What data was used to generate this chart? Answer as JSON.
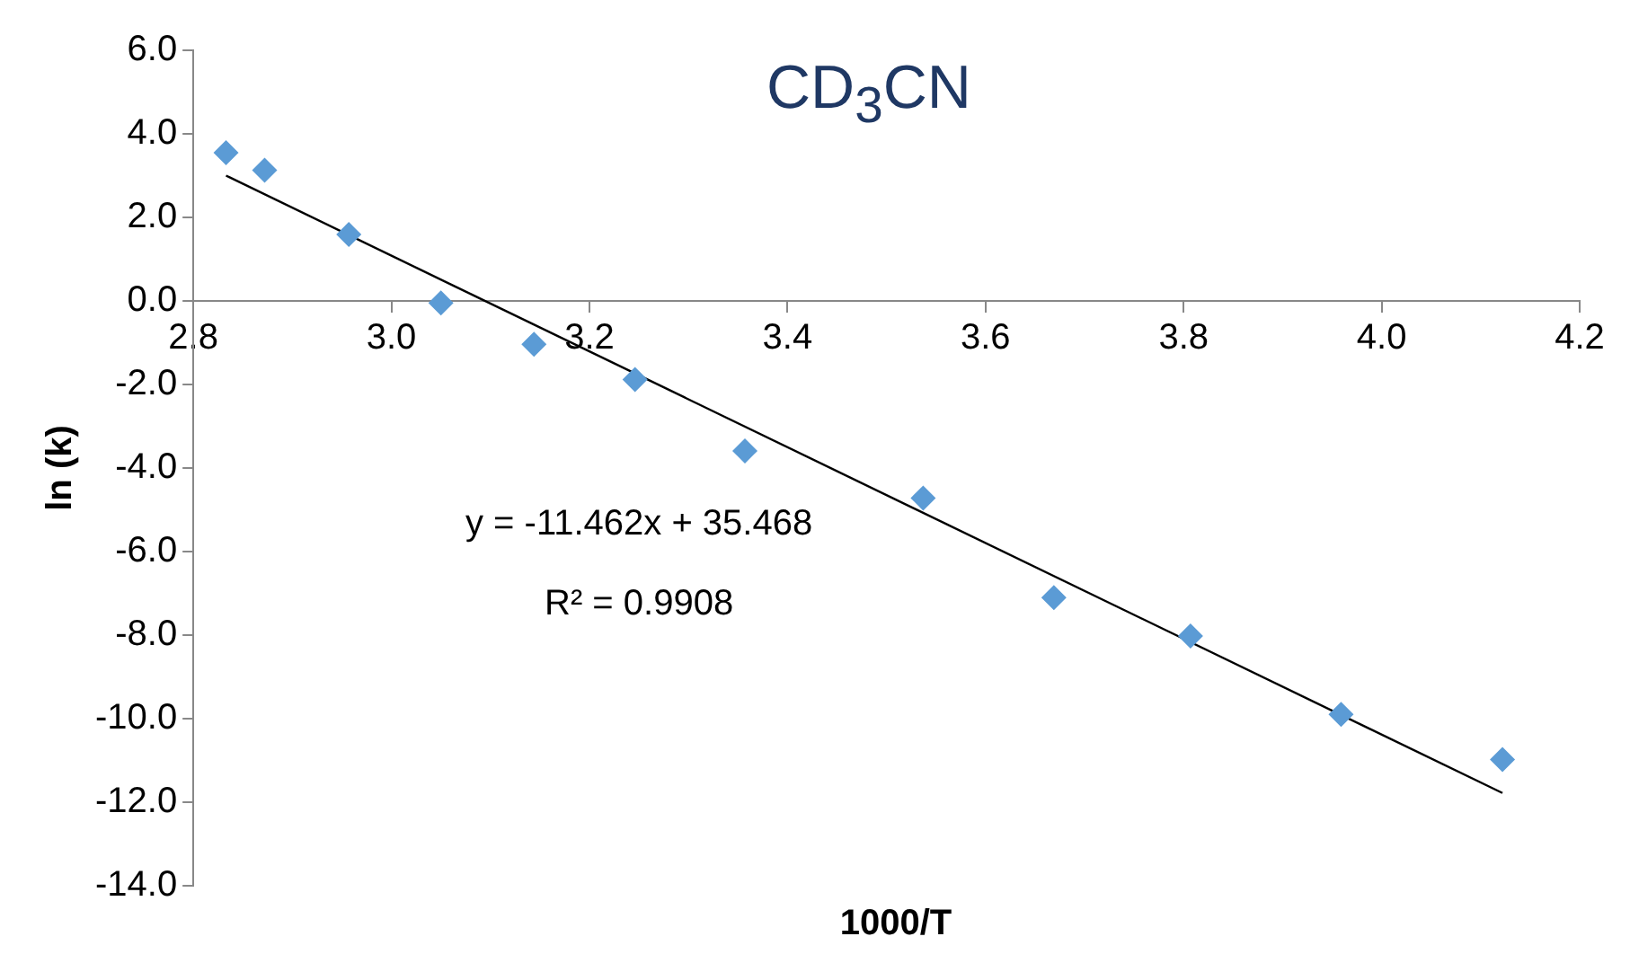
{
  "chart_data": {
    "type": "scatter",
    "title": "CD$_{3}$CN",
    "xlabel": "1000/T",
    "ylabel": "ln (k)",
    "x": [
      2.833,
      2.872,
      2.957,
      3.05,
      3.144,
      3.246,
      3.357,
      3.537,
      3.669,
      3.807,
      3.959,
      4.122
    ],
    "series": [
      {
        "type": "scatter",
        "color": "#5b9bd5",
        "marker": "diamond",
        "values": [
          3.55,
          3.13,
          1.59,
          -0.05,
          -1.04,
          -1.88,
          -3.59,
          -4.72,
          -7.1,
          -8.02,
          -9.9,
          -10.98
        ]
      },
      {
        "type": "line",
        "color": "#000000",
        "marker": "none",
        "x": [
          2.833,
          4.122
        ],
        "values": [
          3.0,
          -11.78
        ]
      }
    ],
    "xlim": [
      2.8,
      4.2
    ],
    "xticks": [
      2.8,
      {
        "value": 3,
        "label": "3.0"
      },
      3.2,
      3.4,
      3.6,
      3.8,
      {
        "value": 4,
        "label": "4.0"
      },
      4.2
    ],
    "ylim": [
      -14,
      6
    ],
    "yticks": [
      {
        "value": -14,
        "label": "-14.0"
      },
      {
        "value": -12,
        "label": "-12.0"
      },
      {
        "value": -10,
        "label": "-10.0"
      },
      {
        "value": -8,
        "label": "-8.0"
      },
      {
        "value": -6,
        "label": "-6.0"
      },
      {
        "value": -4,
        "label": "-4.0"
      },
      {
        "value": -2,
        "label": "-2.0"
      },
      {
        "value": 0,
        "label": "0.0"
      },
      {
        "value": 2,
        "label": "2.0"
      },
      {
        "value": 4,
        "label": "4.0"
      },
      {
        "value": 6,
        "label": "6.0"
      }
    ],
    "annotations": [
      "y = -11.462x + 35.468",
      "R² = 0.9908"
    ],
    "grid": false,
    "legend": false
  }
}
